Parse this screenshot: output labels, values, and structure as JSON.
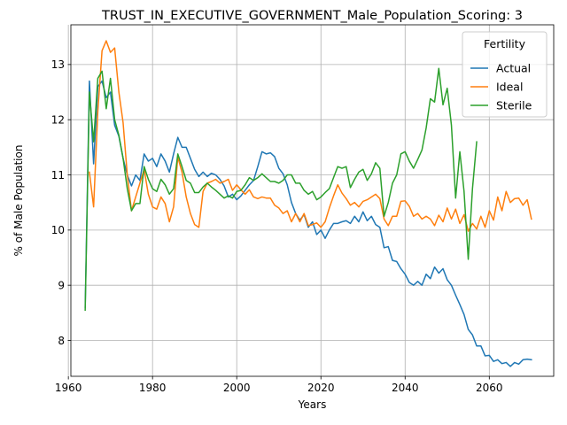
{
  "chart_data": {
    "type": "line",
    "title": "TRUST_IN_EXECUTIVE_GOVERNMENT_Male_Population_Scoring: 3",
    "xlabel": "Years",
    "ylabel": "% of Male Population",
    "xlim": [
      1960.6,
      2075.3
    ],
    "ylim": [
      7.35,
      13.72
    ],
    "xticks": [
      1960,
      1980,
      2000,
      2020,
      2040,
      2060
    ],
    "yticks": [
      8,
      9,
      10,
      11,
      12,
      13
    ],
    "grid": true,
    "legend": {
      "title": "Fertility",
      "position": "top-right"
    },
    "series": [
      {
        "name": "Actual",
        "color": "#1f77b4",
        "x": [
          1964,
          1965,
          1966,
          1967,
          1968,
          1969,
          1970,
          1971,
          1972,
          1973,
          1974,
          1975,
          1976,
          1977,
          1978,
          1979,
          1980,
          1981,
          1982,
          1983,
          1984,
          1985,
          1986,
          1987,
          1988,
          1989,
          1990,
          1991,
          1992,
          1993,
          1994,
          1995,
          1996,
          1997,
          1998,
          1999,
          2000,
          2001,
          2002,
          2003,
          2004,
          2005,
          2006,
          2007,
          2008,
          2009,
          2010,
          2011,
          2012,
          2013,
          2014,
          2015,
          2016,
          2017,
          2018,
          2019,
          2020,
          2021,
          2022,
          2023,
          2024,
          2025,
          2026,
          2027,
          2028,
          2029,
          2030,
          2031,
          2032,
          2033,
          2034,
          2035,
          2036,
          2037,
          2038,
          2039,
          2040,
          2041,
          2042,
          2043,
          2044,
          2045,
          2046,
          2047,
          2048,
          2049,
          2050,
          2051,
          2052,
          2053,
          2054,
          2055,
          2056,
          2057,
          2058,
          2059,
          2060,
          2061,
          2062,
          2063,
          2064,
          2065,
          2066,
          2067,
          2068,
          2069,
          2070
        ],
        "values": [
          8.6,
          12.7,
          11.2,
          12.6,
          12.7,
          12.4,
          12.5,
          11.9,
          11.7,
          11.3,
          11.0,
          10.8,
          11.0,
          10.9,
          11.38,
          11.25,
          11.3,
          11.15,
          11.38,
          11.25,
          11.05,
          11.38,
          11.68,
          11.5,
          11.5,
          11.3,
          11.1,
          10.97,
          11.05,
          10.97,
          11.03,
          11.0,
          10.92,
          10.8,
          10.6,
          10.65,
          10.55,
          10.62,
          10.72,
          10.82,
          10.9,
          11.15,
          11.42,
          11.38,
          11.4,
          11.33,
          11.12,
          11.02,
          10.82,
          10.5,
          10.3,
          10.18,
          10.28,
          10.05,
          10.15,
          9.92,
          10.0,
          9.85,
          10.0,
          10.12,
          10.12,
          10.15,
          10.17,
          10.12,
          10.25,
          10.15,
          10.33,
          10.17,
          10.25,
          10.1,
          10.05,
          9.68,
          9.7,
          9.45,
          9.43,
          9.3,
          9.2,
          9.05,
          9.0,
          9.07,
          9.0,
          9.2,
          9.12,
          9.33,
          9.22,
          9.3,
          9.1,
          9.0,
          8.82,
          8.65,
          8.47,
          8.2,
          8.1,
          7.9,
          7.9,
          7.72,
          7.73,
          7.62,
          7.65,
          7.58,
          7.6,
          7.53,
          7.6,
          7.57,
          7.65,
          7.66,
          7.65
        ]
      },
      {
        "name": "Ideal",
        "color": "#ff7f0e",
        "x": [
          1965,
          1966,
          1967,
          1968,
          1969,
          1970,
          1971,
          1972,
          1973,
          1974,
          1975,
          1976,
          1977,
          1978,
          1979,
          1980,
          1981,
          1982,
          1983,
          1984,
          1985,
          1986,
          1987,
          1988,
          1989,
          1990,
          1991,
          1992,
          1993,
          1994,
          1995,
          1996,
          1997,
          1998,
          1999,
          2000,
          2001,
          2002,
          2003,
          2004,
          2005,
          2006,
          2007,
          2008,
          2009,
          2010,
          2011,
          2012,
          2013,
          2014,
          2015,
          2016,
          2017,
          2018,
          2019,
          2020,
          2021,
          2022,
          2023,
          2024,
          2025,
          2026,
          2027,
          2028,
          2029,
          2030,
          2031,
          2032,
          2033,
          2034,
          2035,
          2036,
          2037,
          2038,
          2039,
          2040,
          2041,
          2042,
          2043,
          2044,
          2045,
          2046,
          2047,
          2048,
          2049,
          2050,
          2051,
          2052,
          2053,
          2054,
          2055,
          2056,
          2057,
          2058,
          2059,
          2060,
          2061,
          2062,
          2063,
          2064,
          2065,
          2066,
          2067,
          2068,
          2069,
          2070
        ],
        "values": [
          11.05,
          10.42,
          12.15,
          13.25,
          13.43,
          13.22,
          13.3,
          12.5,
          11.95,
          11.0,
          10.35,
          10.6,
          10.85,
          11.1,
          10.65,
          10.42,
          10.38,
          10.6,
          10.48,
          10.15,
          10.42,
          11.32,
          11.05,
          10.6,
          10.3,
          10.1,
          10.05,
          10.7,
          10.85,
          10.88,
          10.92,
          10.85,
          10.88,
          10.92,
          10.72,
          10.82,
          10.73,
          10.65,
          10.73,
          10.6,
          10.57,
          10.6,
          10.58,
          10.58,
          10.45,
          10.4,
          10.3,
          10.35,
          10.15,
          10.3,
          10.15,
          10.3,
          10.08,
          10.1,
          10.13,
          10.05,
          10.15,
          10.4,
          10.62,
          10.82,
          10.67,
          10.57,
          10.45,
          10.5,
          10.42,
          10.52,
          10.55,
          10.6,
          10.65,
          10.57,
          10.2,
          10.08,
          10.25,
          10.25,
          10.52,
          10.53,
          10.43,
          10.25,
          10.3,
          10.2,
          10.25,
          10.2,
          10.08,
          10.27,
          10.15,
          10.4,
          10.2,
          10.38,
          10.12,
          10.28,
          9.98,
          10.12,
          10.02,
          10.25,
          10.05,
          10.35,
          10.18,
          10.6,
          10.35,
          10.7,
          10.5,
          10.57,
          10.58,
          10.45,
          10.55,
          10.2
        ]
      },
      {
        "name": "Sterile",
        "color": "#2ca02c",
        "x": [
          1964,
          1965,
          1966,
          1967,
          1968,
          1969,
          1970,
          1971,
          1972,
          1973,
          1974,
          1975,
          1976,
          1977,
          1978,
          1979,
          1980,
          1981,
          1982,
          1983,
          1984,
          1985,
          1986,
          1987,
          1988,
          1989,
          1990,
          1991,
          1992,
          1993,
          1994,
          1995,
          1996,
          1997,
          1998,
          1999,
          2000,
          2001,
          2002,
          2003,
          2004,
          2005,
          2006,
          2007,
          2008,
          2009,
          2010,
          2011,
          2012,
          2013,
          2014,
          2015,
          2016,
          2017,
          2018,
          2019,
          2020,
          2021,
          2022,
          2023,
          2024,
          2025,
          2026,
          2027,
          2028,
          2029,
          2030,
          2031,
          2032,
          2033,
          2034,
          2035,
          2036,
          2037,
          2038,
          2039,
          2040,
          2041,
          2042,
          2043,
          2044,
          2045,
          2046,
          2047,
          2048,
          2049,
          2050,
          2051,
          2052,
          2053,
          2054,
          2055,
          2056,
          2057
        ],
        "values": [
          8.55,
          12.5,
          11.6,
          12.75,
          12.88,
          12.2,
          12.75,
          12.0,
          11.72,
          11.3,
          10.75,
          10.35,
          10.48,
          10.48,
          11.15,
          10.92,
          10.75,
          10.7,
          10.92,
          10.82,
          10.65,
          10.75,
          11.38,
          11.15,
          10.9,
          10.85,
          10.68,
          10.68,
          10.78,
          10.85,
          10.78,
          10.72,
          10.65,
          10.58,
          10.62,
          10.58,
          10.7,
          10.72,
          10.82,
          10.95,
          10.9,
          10.95,
          11.02,
          10.95,
          10.88,
          10.88,
          10.85,
          10.9,
          11.0,
          11.0,
          10.85,
          10.85,
          10.72,
          10.65,
          10.7,
          10.55,
          10.6,
          10.68,
          10.75,
          10.95,
          11.15,
          11.12,
          11.15,
          10.77,
          10.92,
          11.05,
          11.1,
          10.9,
          11.02,
          11.22,
          11.12,
          10.25,
          10.5,
          10.85,
          11.0,
          11.38,
          11.42,
          11.25,
          11.12,
          11.28,
          11.45,
          11.85,
          12.38,
          12.32,
          12.93,
          12.27,
          12.57,
          11.9,
          10.58,
          11.42,
          10.7,
          9.47,
          10.75,
          11.6
        ]
      }
    ]
  }
}
